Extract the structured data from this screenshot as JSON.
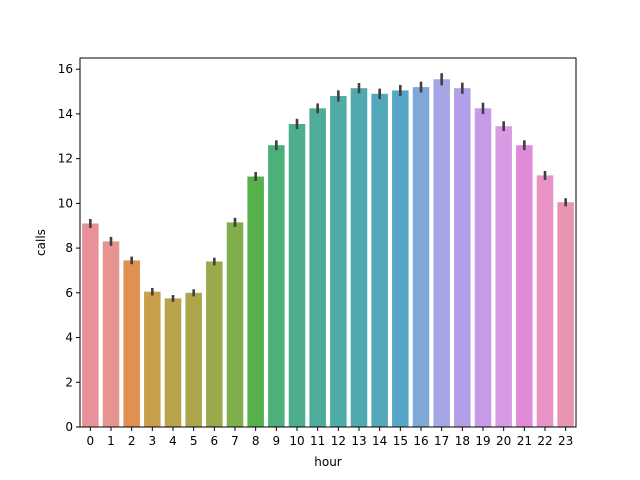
{
  "chart_data": {
    "type": "bar",
    "title": "",
    "xlabel": "hour",
    "ylabel": "calls",
    "categories": [
      "0",
      "1",
      "2",
      "3",
      "4",
      "5",
      "6",
      "7",
      "8",
      "9",
      "10",
      "11",
      "12",
      "13",
      "14",
      "15",
      "16",
      "17",
      "18",
      "19",
      "20",
      "21",
      "22",
      "23"
    ],
    "values": [
      9.1,
      8.3,
      7.45,
      6.05,
      5.75,
      6.0,
      7.4,
      9.15,
      11.2,
      12.6,
      13.55,
      14.25,
      14.8,
      15.15,
      14.9,
      15.05,
      15.2,
      15.55,
      15.15,
      14.25,
      13.45,
      12.6,
      11.25,
      10.05
    ],
    "error": [
      0.2,
      0.2,
      0.17,
      0.17,
      0.15,
      0.16,
      0.17,
      0.2,
      0.2,
      0.22,
      0.23,
      0.22,
      0.25,
      0.23,
      0.23,
      0.24,
      0.24,
      0.27,
      0.25,
      0.25,
      0.22,
      0.22,
      0.2,
      0.18
    ],
    "colors": [
      "#e8919a",
      "#e5948f",
      "#e0914f",
      "#c89f4a",
      "#b9a44c",
      "#aba64c",
      "#9ba84b",
      "#7fae4a",
      "#56b04c",
      "#4db07a",
      "#4ead8e",
      "#4fab9b",
      "#50aaa5",
      "#51a9b0",
      "#53a8ba",
      "#55a6c7",
      "#7fa8d8",
      "#a5a6e4",
      "#b39ee8",
      "#c79ae8",
      "#d99ae4",
      "#e08ad9",
      "#e892c5",
      "#e994b2"
    ],
    "ylim": [
      0,
      16.5
    ],
    "yticks": [
      0,
      2,
      4,
      6,
      8,
      10,
      12,
      14,
      16
    ],
    "grid": false
  }
}
